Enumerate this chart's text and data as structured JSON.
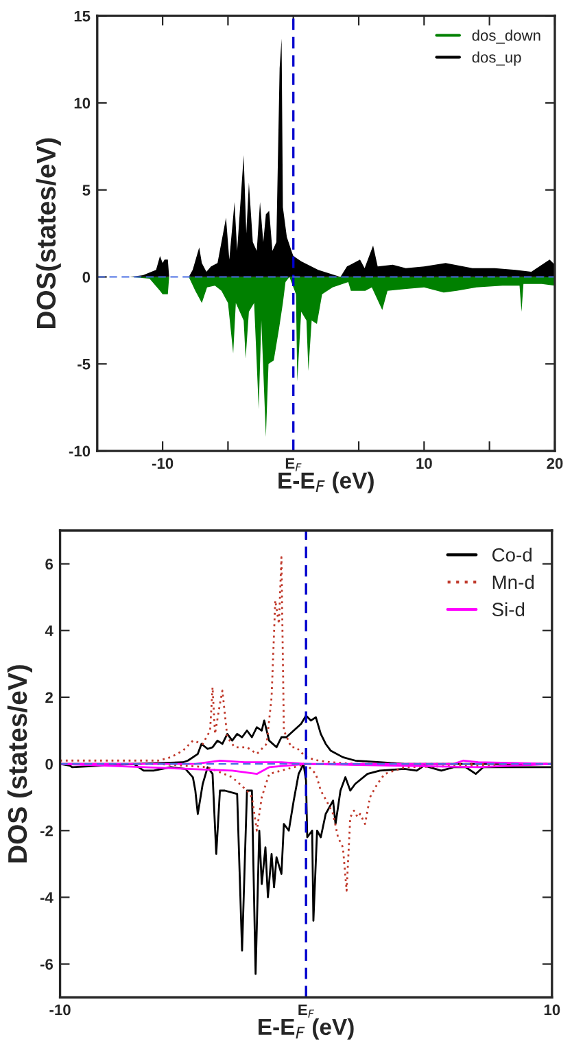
{
  "chart_data": [
    {
      "type": "area",
      "xlabel": "E-E$_{F}$ (eV)",
      "ylabel": "DOS(states/eV)",
      "xlim": [
        -15,
        20
      ],
      "ylim": [
        -10,
        15
      ],
      "xticks": [
        {
          "value": -10,
          "label": "-10"
        },
        {
          "value": -5,
          "label": null
        },
        {
          "value": 0,
          "label": "E$_{F}$"
        },
        {
          "value": 5,
          "label": null
        },
        {
          "value": 10,
          "label": "10"
        },
        {
          "value": 15,
          "label": null
        },
        {
          "value": 20,
          "label": "20"
        }
      ],
      "yticks": [
        -10,
        -5,
        0,
        5,
        10,
        15
      ],
      "legend": "top right",
      "ref_lines": [
        {
          "axis": "x",
          "value": 0,
          "color": "#0000cd",
          "line_style": "dashed"
        },
        {
          "axis": "y",
          "value": 0,
          "color": "#4a6fe3",
          "line_style": "dashed"
        }
      ],
      "series": [
        {
          "name": "dos_down",
          "color": "#008000",
          "x": [
            -15,
            -12.5,
            -11,
            -10.2,
            -10,
            -9.6,
            -9.5,
            -8,
            -7.5,
            -7.0,
            -6.6,
            -6,
            -5.5,
            -5.0,
            -4.6,
            -4.4,
            -3.8,
            -3.65,
            -3.4,
            -3.0,
            -2.65,
            -2.45,
            -2.1,
            -1.9,
            -1.5,
            -1.1,
            -0.8,
            -0.6,
            -0.3,
            0.2,
            0.3,
            0.6,
            1.0,
            1.15,
            1.4,
            1.8,
            2.2,
            3.0,
            4.2,
            4.4,
            5.5,
            6.0,
            6.8,
            7.2,
            8.5,
            10,
            11.5,
            12.5,
            14,
            16,
            17.3,
            17.45,
            17.6,
            19,
            20
          ],
          "values": [
            0,
            0,
            -0.1,
            -0.8,
            -1.0,
            -1.0,
            0,
            0,
            -0.8,
            -1.5,
            -0.6,
            -0.5,
            -0.8,
            -1.5,
            -4.4,
            -1.5,
            -2.5,
            -4.7,
            -2,
            -1.5,
            -7.6,
            -2.5,
            -9.2,
            -5.0,
            -4.8,
            -3.0,
            -1.5,
            -0.3,
            0,
            -1.0,
            -6.0,
            -2.0,
            -2.5,
            -5.4,
            -2.5,
            -2.7,
            -1.0,
            -0.6,
            -0.3,
            -0.8,
            -0.8,
            -0.6,
            -1.9,
            -0.8,
            -0.7,
            -0.6,
            -0.9,
            -0.8,
            -0.6,
            -0.5,
            -0.5,
            -2.0,
            -0.4,
            -0.4,
            -0.5
          ]
        },
        {
          "name": "dos_up",
          "color": "#000000",
          "x": [
            -15,
            -12.5,
            -11.5,
            -10.5,
            -10.2,
            -10,
            -9.85,
            -9.6,
            -9.5,
            -8,
            -7.7,
            -7.2,
            -7.0,
            -6.65,
            -6.3,
            -5.8,
            -5.15,
            -4.9,
            -4.5,
            -4.3,
            -3.8,
            -3.6,
            -3.4,
            -3.1,
            -2.8,
            -2.55,
            -2.3,
            -2.1,
            -1.85,
            -1.6,
            -1.3,
            -1.05,
            -0.9,
            -0.8,
            -0.5,
            -0.1,
            0,
            0.6,
            1.9,
            3.6,
            4.1,
            5.1,
            5.45,
            6.1,
            6.45,
            7.6,
            8.6,
            10,
            11.65,
            13.7,
            15.4,
            17.0,
            18.2,
            19.6,
            20
          ],
          "values": [
            0,
            0,
            0.1,
            0.4,
            1.2,
            0.8,
            1.0,
            1.0,
            0,
            0,
            0.4,
            1.7,
            0.8,
            0.3,
            0.6,
            0.8,
            3.4,
            1.0,
            4.3,
            1.5,
            7.0,
            2.5,
            5.4,
            2.0,
            1.5,
            4.3,
            2.0,
            3.6,
            3.8,
            1.5,
            2.0,
            12.0,
            13.7,
            4.0,
            2.3,
            1.4,
            1.2,
            0.9,
            0.4,
            0.0,
            0.6,
            1.0,
            0.5,
            1.8,
            0.6,
            0.7,
            0.5,
            0.6,
            0.8,
            0.5,
            0.5,
            0.4,
            0.3,
            1.0,
            0.7
          ]
        }
      ]
    },
    {
      "type": "line",
      "xlabel": "E-E$_{F}$ (eV)",
      "ylabel": "DOS (states/eV)",
      "xlim": [
        -10,
        10
      ],
      "ylim": [
        -7,
        7
      ],
      "xticks": [
        {
          "value": -10,
          "label": "-10"
        },
        {
          "value": 0,
          "label": "E$_{F}$"
        },
        {
          "value": 10,
          "label": "10"
        }
      ],
      "yticks": [
        -6,
        -4,
        -2,
        0,
        2,
        4,
        6
      ],
      "legend": "top right",
      "ref_lines": [
        {
          "axis": "x",
          "value": 0,
          "color": "#0000cd",
          "line_style": "dashed"
        },
        {
          "axis": "y",
          "value": 0,
          "color": "#4a6fe3",
          "line_style": "dashed"
        }
      ],
      "series": [
        {
          "name": "Co-d",
          "color": "#000000",
          "line_style": "solid",
          "x": [
            -10,
            -7,
            -5,
            -4.8,
            -4.4,
            -4.25,
            -4.0,
            -3.8,
            -3.6,
            -3.4,
            -3.2,
            -3.0,
            -2.8,
            -2.6,
            -2.4,
            -2.2,
            -2.0,
            -1.8,
            -1.7,
            -1.5,
            -1.2,
            -1.0,
            -0.8,
            -0.5,
            -0.2,
            0,
            0.2,
            0.4,
            0.6,
            0.8,
            1.0,
            1.5,
            2,
            3,
            4,
            10
          ],
          "values": [
            0,
            0,
            0.05,
            0.1,
            0.3,
            0.6,
            0.45,
            0.5,
            0.7,
            0.6,
            0.9,
            0.7,
            0.9,
            0.8,
            1.0,
            0.8,
            1.1,
            1.0,
            1.3,
            0.7,
            0.5,
            0.8,
            0.8,
            1.0,
            1.2,
            1.45,
            1.3,
            1.4,
            0.9,
            0.6,
            0.4,
            0.2,
            0.1,
            0.05,
            0,
            0
          ]
        },
        {
          "color": "#000000",
          "line_style": "solid",
          "x": [
            -10,
            -9.6,
            -9.5,
            -7,
            -6.6,
            -6.2,
            -5.5,
            -4.9,
            -4.6,
            -4.5,
            -4.4,
            -4.2,
            -4.0,
            -3.8,
            -3.65,
            -3.5,
            -3.3,
            -2.8,
            -2.6,
            -2.4,
            -2.2,
            -2.05,
            -1.9,
            -1.8,
            -1.65,
            -1.55,
            -1.4,
            -1.3,
            -1.2,
            -1.0,
            -0.9,
            -0.7,
            -0.5,
            -0.3,
            -0.1,
            0,
            0.05,
            0.25,
            0.3,
            0.45,
            0.6,
            0.8,
            1.1,
            1.2,
            1.4,
            1.6,
            1.8,
            2.0,
            2.5,
            3.0,
            4.0,
            4.5,
            4.8,
            5.5,
            6.0,
            6.5,
            6.9,
            7.2,
            8,
            10
          ],
          "values": [
            0,
            -0.05,
            -0.1,
            0,
            -0.2,
            -0.2,
            -0.1,
            -0.15,
            -0.4,
            -0.8,
            -1.5,
            -0.6,
            -0.1,
            -0.3,
            -2.7,
            -0.8,
            -0.8,
            -0.9,
            -5.6,
            -0.8,
            -0.8,
            -6.3,
            -2.0,
            -3.6,
            -2.5,
            -4.0,
            -2.7,
            -3.7,
            -2.8,
            -3.3,
            -1.8,
            -2.0,
            -1.1,
            -0.3,
            0,
            -0.5,
            -2.2,
            -2.0,
            -4.7,
            -2.0,
            -2.2,
            -1.5,
            -1.1,
            -1.8,
            -0.8,
            -0.4,
            -0.8,
            -0.6,
            -0.3,
            -0.2,
            -0.15,
            -0.2,
            -0.05,
            -0.2,
            -0.1,
            -0.1,
            -0.3,
            -0.1,
            -0.1,
            -0.1
          ]
        },
        {
          "name": "Mn-d",
          "color": "#c0392b",
          "line_style": "dotted",
          "x": [
            -10,
            -8,
            -6,
            -5.5,
            -5,
            -4.6,
            -4.2,
            -3.9,
            -3.8,
            -3.7,
            -3.5,
            -3.4,
            -3.2,
            -2.9,
            -2.7,
            -2.4,
            -2.0,
            -1.6,
            -1.4,
            -1.25,
            -1.1,
            -1.0,
            -0.9,
            -0.6,
            -0.4,
            0,
            0.5,
            1,
            2,
            10
          ],
          "values": [
            0.1,
            0.1,
            0.1,
            0.2,
            0.4,
            0.7,
            0.6,
            1.0,
            2.3,
            0.9,
            1.8,
            2.2,
            0.8,
            0.5,
            0.5,
            0.5,
            0.3,
            0.6,
            2.0,
            4.9,
            4.2,
            6.2,
            1.0,
            0.5,
            0.5,
            0.2,
            0.1,
            0.05,
            0,
            0
          ]
        },
        {
          "color": "#c0392b",
          "line_style": "dotted",
          "x": [
            -10,
            -6,
            -4,
            -3.0,
            -2.7,
            -2.4,
            -2.2,
            -2.0,
            -1.8,
            -1.5,
            -1.0,
            -0.5,
            0,
            0.4,
            0.6,
            0.9,
            1.1,
            1.3,
            1.5,
            1.65,
            1.8,
            1.95,
            2.1,
            2.2,
            2.4,
            2.6,
            2.9,
            3.2,
            4,
            10
          ],
          "values": [
            0,
            0,
            -0.1,
            -0.4,
            -0.6,
            -0.8,
            -1.0,
            -2.0,
            -1.0,
            -0.3,
            -0.2,
            -0.1,
            0,
            -0.3,
            -0.8,
            -1.2,
            -1.5,
            -2.2,
            -2.5,
            -3.8,
            -1.6,
            -1.4,
            -1.6,
            -1.5,
            -1.8,
            -1.0,
            -0.6,
            -0.3,
            -0.1,
            0
          ]
        },
        {
          "name": "Si-d",
          "color": "#ff00ff",
          "line_style": "solid",
          "x": [
            -10,
            -4.5,
            -3.5,
            -2.5,
            -1,
            0,
            6,
            6.4,
            7,
            10
          ],
          "values": [
            0,
            0,
            0.1,
            0.05,
            0.05,
            0,
            0,
            0.1,
            0.05,
            0
          ]
        },
        {
          "color": "#ff00ff",
          "line_style": "solid",
          "x": [
            -10,
            -3.0,
            -2.0,
            -1.5,
            0,
            7,
            10
          ],
          "values": [
            0,
            -0.2,
            -0.3,
            -0.1,
            0,
            -0.1,
            0
          ]
        }
      ]
    }
  ]
}
